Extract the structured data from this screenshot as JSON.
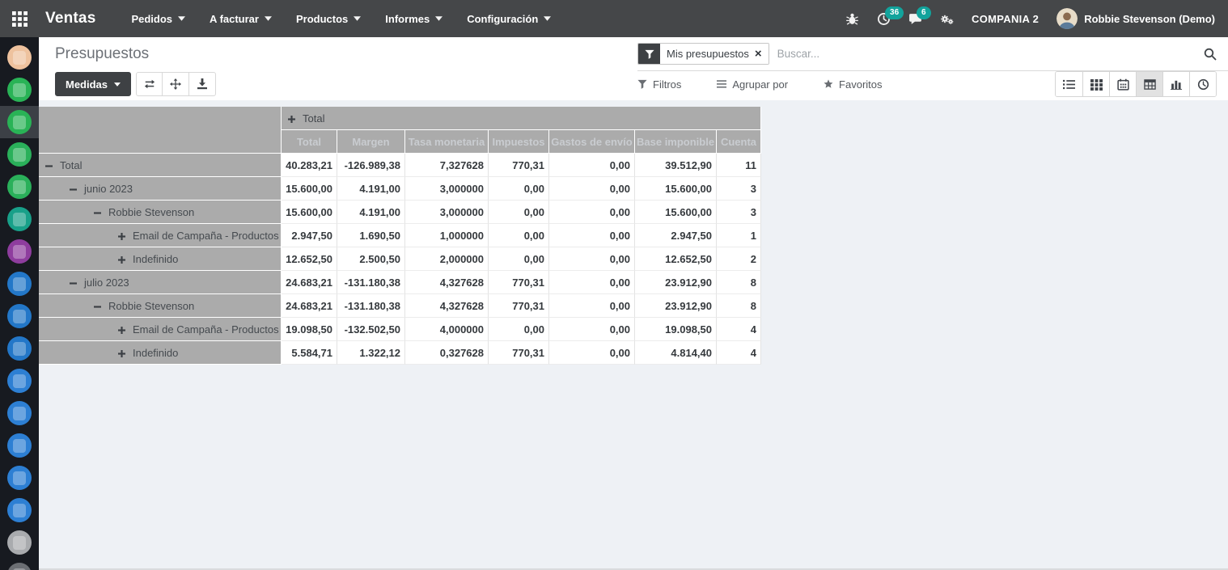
{
  "navbar": {
    "app_name": "Ventas",
    "menus": [
      {
        "name": "menu-pedidos",
        "label": "Pedidos"
      },
      {
        "name": "menu-a-facturar",
        "label": "A facturar"
      },
      {
        "name": "menu-productos",
        "label": "Productos"
      },
      {
        "name": "menu-informes",
        "label": "Informes"
      },
      {
        "name": "menu-configuracion",
        "label": "Configuración"
      }
    ],
    "systray": {
      "activity_count": "36",
      "message_count": "6",
      "company": "COMPANIA 2",
      "user": "Robbie Stevenson (Demo)",
      "badge_color": "#12a39c"
    }
  },
  "sidebar": {
    "apps": [
      {
        "name": "app-01",
        "color": "#eec29e",
        "active": false
      },
      {
        "name": "app-02",
        "color": "#29b356",
        "active": false
      },
      {
        "name": "app-03",
        "color": "#29b356",
        "active": true
      },
      {
        "name": "app-04",
        "color": "#2ab05a",
        "active": false
      },
      {
        "name": "app-05",
        "color": "#2ab05a",
        "active": false
      },
      {
        "name": "app-06",
        "color": "#18a089",
        "active": false
      },
      {
        "name": "app-07",
        "color": "#8e3d9e",
        "active": false
      },
      {
        "name": "app-08",
        "color": "#2377c8",
        "active": false
      },
      {
        "name": "app-09",
        "color": "#2377c8",
        "active": false
      },
      {
        "name": "app-10",
        "color": "#2377c8",
        "active": false
      },
      {
        "name": "app-11",
        "color": "#2d7fd3",
        "active": false
      },
      {
        "name": "app-12",
        "color": "#2d7fd3",
        "active": false
      },
      {
        "name": "app-13",
        "color": "#2d7fd3",
        "active": false
      },
      {
        "name": "app-14",
        "color": "#2d7fd3",
        "active": false
      },
      {
        "name": "app-15",
        "color": "#2d7fd3",
        "active": false
      },
      {
        "name": "app-16",
        "color": "#a9abae",
        "active": false
      },
      {
        "name": "app-17",
        "color": "#6b6e73",
        "active": false
      }
    ]
  },
  "control_panel": {
    "title": "Presupuestos",
    "measures_label": "Medidas",
    "pivot_tools": [
      {
        "name": "flip-axis-button",
        "icon": "swap"
      },
      {
        "name": "expand-all-button",
        "icon": "expand"
      },
      {
        "name": "download-button",
        "icon": "download"
      }
    ],
    "search": {
      "facet_label": "Mis presupuestos",
      "placeholder": "Buscar..."
    },
    "search_menus": [
      {
        "name": "filters-button",
        "icon": "funnel",
        "label": "Filtros"
      },
      {
        "name": "groupby-button",
        "icon": "bars",
        "label": "Agrupar por"
      },
      {
        "name": "favorites-button",
        "icon": "star",
        "label": "Favoritos"
      }
    ],
    "view_switcher": [
      {
        "name": "view-list",
        "icon": "list",
        "active": false
      },
      {
        "name": "view-kanban",
        "icon": "kanban",
        "active": false
      },
      {
        "name": "view-calendar",
        "icon": "calendar",
        "active": false
      },
      {
        "name": "view-pivot",
        "icon": "pivot",
        "active": true
      },
      {
        "name": "view-graph",
        "icon": "graph",
        "active": false
      },
      {
        "name": "view-activity",
        "icon": "clock",
        "active": false
      }
    ]
  },
  "pivot": {
    "col_group_label": "Total",
    "col_group_toggle": "plus",
    "measures": [
      "Total",
      "Margen",
      "Tasa monetaria",
      "Impuestos",
      "Gastos de envío",
      "Base imponible",
      "Cuenta"
    ],
    "rows": [
      {
        "label": "Total",
        "level": 0,
        "toggle": "minus",
        "values": [
          "40.283,21",
          "-126.989,38",
          "7,327628",
          "770,31",
          "0,00",
          "39.512,90",
          "11"
        ]
      },
      {
        "label": "junio 2023",
        "level": 1,
        "toggle": "minus",
        "values": [
          "15.600,00",
          "4.191,00",
          "3,000000",
          "0,00",
          "0,00",
          "15.600,00",
          "3"
        ]
      },
      {
        "label": "Robbie Stevenson",
        "level": 2,
        "toggle": "minus",
        "values": [
          "15.600,00",
          "4.191,00",
          "3,000000",
          "0,00",
          "0,00",
          "15.600,00",
          "3"
        ]
      },
      {
        "label": "Email de Campaña - Productos",
        "level": 3,
        "toggle": "plus",
        "values": [
          "2.947,50",
          "1.690,50",
          "1,000000",
          "0,00",
          "0,00",
          "2.947,50",
          "1"
        ]
      },
      {
        "label": "Indefinido",
        "level": 3,
        "toggle": "plus",
        "values": [
          "12.652,50",
          "2.500,50",
          "2,000000",
          "0,00",
          "0,00",
          "12.652,50",
          "2"
        ]
      },
      {
        "label": "julio 2023",
        "level": 1,
        "toggle": "minus",
        "values": [
          "24.683,21",
          "-131.180,38",
          "4,327628",
          "770,31",
          "0,00",
          "23.912,90",
          "8"
        ]
      },
      {
        "label": "Robbie Stevenson",
        "level": 2,
        "toggle": "minus",
        "values": [
          "24.683,21",
          "-131.180,38",
          "4,327628",
          "770,31",
          "0,00",
          "23.912,90",
          "8"
        ]
      },
      {
        "label": "Email de Campaña - Productos",
        "level": 3,
        "toggle": "plus",
        "values": [
          "19.098,50",
          "-132.502,50",
          "4,000000",
          "0,00",
          "0,00",
          "19.098,50",
          "4"
        ]
      },
      {
        "label": "Indefinido",
        "level": 3,
        "toggle": "plus",
        "values": [
          "5.584,71",
          "1.322,12",
          "0,327628",
          "770,31",
          "0,00",
          "4.814,40",
          "4"
        ]
      }
    ]
  }
}
